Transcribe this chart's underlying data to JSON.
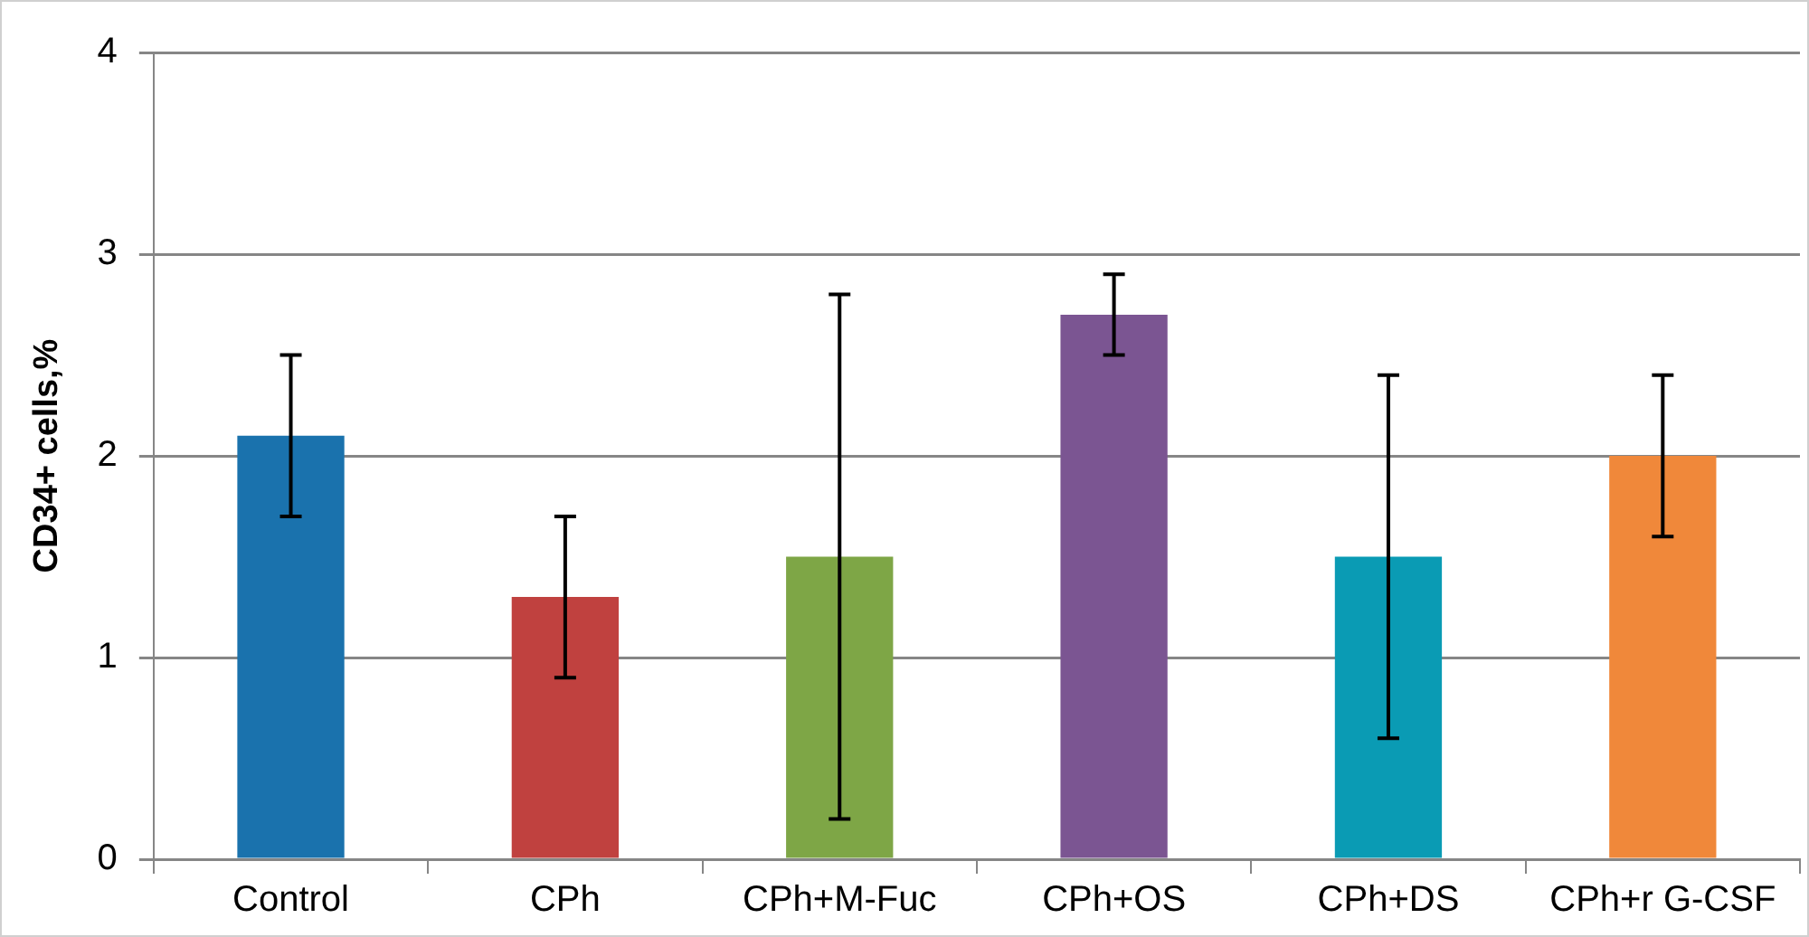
{
  "chart_data": {
    "type": "bar",
    "ylabel": "CD34+ cells,%",
    "categories": [
      "Control",
      "CPh",
      "CPh+M-Fuc",
      "CPh+OS",
      "CPh+DS",
      "CPh+r G-CSF"
    ],
    "values": [
      2.1,
      1.3,
      1.5,
      2.7,
      1.5,
      2.0
    ],
    "colors": [
      "#1a72ad",
      "#c0413f",
      "#7ea646",
      "#7b5592",
      "#0a9bb4",
      "#f0883a"
    ],
    "errors": [
      0.4,
      0.4,
      1.3,
      0.2,
      0.9,
      0.4
    ],
    "ylim": [
      0,
      4
    ],
    "yticks": [
      0,
      1,
      2,
      3,
      4
    ],
    "grid": "y",
    "legend": false
  }
}
